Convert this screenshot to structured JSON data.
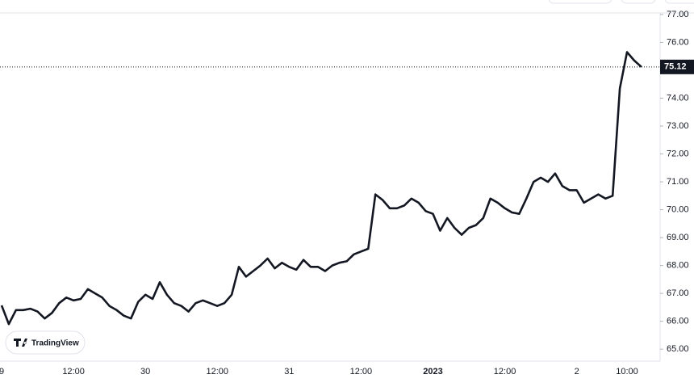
{
  "chart_data": {
    "type": "line",
    "brand": "TradingView",
    "categories": [
      "9",
      null,
      null,
      null,
      null,
      null,
      null,
      null,
      null,
      null,
      "12:00",
      null,
      null,
      null,
      null,
      null,
      null,
      null,
      null,
      null,
      "30",
      null,
      null,
      null,
      null,
      null,
      null,
      null,
      null,
      null,
      "12:00",
      null,
      null,
      null,
      null,
      null,
      null,
      null,
      null,
      null,
      "31",
      null,
      null,
      null,
      null,
      null,
      null,
      null,
      null,
      null,
      "12:00",
      null,
      null,
      null,
      null,
      null,
      null,
      null,
      null,
      null,
      "2023",
      null,
      null,
      null,
      null,
      null,
      null,
      null,
      null,
      null,
      "12:00",
      null,
      null,
      null,
      null,
      null,
      null,
      null,
      null,
      null,
      "2",
      null,
      null,
      null,
      null,
      null,
      null,
      "10:00",
      null,
      null
    ],
    "series": [
      {
        "color": "#131722",
        "values": [
          66.57,
          65.9,
          66.4,
          66.4,
          66.45,
          66.35,
          66.1,
          66.3,
          66.65,
          66.85,
          66.75,
          66.8,
          67.15,
          67.0,
          66.85,
          66.55,
          66.4,
          66.2,
          66.1,
          66.7,
          66.95,
          66.8,
          67.4,
          66.95,
          66.65,
          66.55,
          66.35,
          66.65,
          66.75,
          66.65,
          66.55,
          66.65,
          66.95,
          67.95,
          67.6,
          67.8,
          68.0,
          68.25,
          67.9,
          68.1,
          67.95,
          67.85,
          68.2,
          67.95,
          67.95,
          67.8,
          68.0,
          68.1,
          68.15,
          68.4,
          68.5,
          68.6,
          70.55,
          70.35,
          70.05,
          70.05,
          70.15,
          70.4,
          70.25,
          69.95,
          69.85,
          69.25,
          69.7,
          69.35,
          69.1,
          69.35,
          69.45,
          69.7,
          70.4,
          70.25,
          70.05,
          69.9,
          69.85,
          70.4,
          71.0,
          71.15,
          71.0,
          71.3,
          70.85,
          70.7,
          70.7,
          70.25,
          70.4,
          70.55,
          70.4,
          70.5,
          74.35,
          75.65,
          75.35,
          75.12
        ]
      }
    ],
    "last_value": 75.12,
    "ylim": [
      64.57,
      77.52
    ],
    "yticks": [
      {
        "value": 65,
        "label": "65.00"
      },
      {
        "value": 66,
        "label": "66.00"
      },
      {
        "value": 67,
        "label": "67.00"
      },
      {
        "value": 68,
        "label": "68.00"
      },
      {
        "value": 69,
        "label": "69.00"
      },
      {
        "value": 70,
        "label": "70.00"
      },
      {
        "value": 71,
        "label": "71.00"
      },
      {
        "value": 72,
        "label": "72.00"
      },
      {
        "value": 73,
        "label": "73.00"
      },
      {
        "value": 74,
        "label": "74.00"
      },
      {
        "value": 75,
        "label": "75.00"
      },
      {
        "value": 76,
        "label": "76.00"
      },
      {
        "value": 77,
        "label": "77.00"
      }
    ],
    "bold_categories": [
      "2023"
    ]
  }
}
